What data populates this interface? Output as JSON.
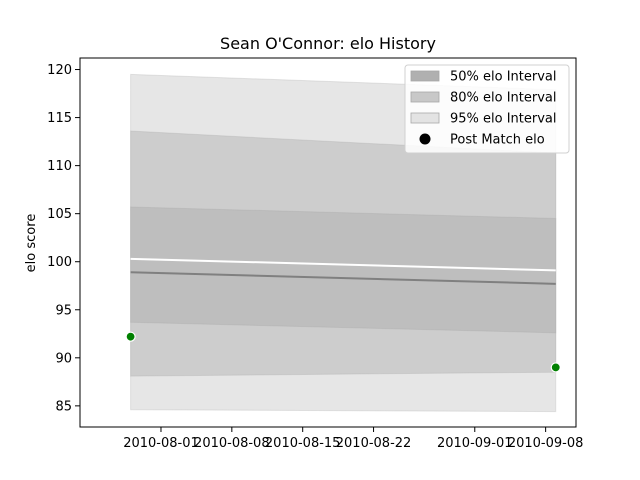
{
  "chart_data": {
    "type": "line",
    "title": "Sean O'Connor: elo History",
    "xlabel": "",
    "ylabel": "elo score",
    "x_ticks": [
      "2010-08-01",
      "2010-08-08",
      "2010-08-15",
      "2010-08-22",
      "2010-09-01",
      "2010-09-08"
    ],
    "y_ticks": [
      85,
      90,
      95,
      100,
      105,
      110,
      115,
      120
    ],
    "xlim": [
      "2010-07-24",
      "2010-09-11"
    ],
    "ylim": [
      82.8,
      121.2
    ],
    "grid": false,
    "legend_position": "top-right",
    "dates": [
      "2010-07-29",
      "2010-09-09"
    ],
    "mean": [
      98.9,
      97.7
    ],
    "median": [
      100.3,
      99.1
    ],
    "bands": [
      {
        "name": "95% elo Interval",
        "lower": [
          84.6,
          84.4
        ],
        "upper": [
          119.5,
          117.9
        ],
        "color": "#e3e3e3"
      },
      {
        "name": "80% elo Interval",
        "lower": [
          88.1,
          88.5
        ],
        "upper": [
          113.6,
          111.3
        ],
        "color": "#cacaca"
      },
      {
        "name": "50% elo Interval",
        "lower": [
          93.7,
          92.6
        ],
        "upper": [
          105.7,
          104.5
        ],
        "color": "#bdbdbd"
      }
    ],
    "points": {
      "name": "Post Match elo",
      "dates": [
        "2010-07-29",
        "2010-09-09"
      ],
      "values": [
        92.2,
        89.0
      ],
      "color": "#008000"
    },
    "legend": [
      {
        "label": "50% elo Interval",
        "color": "#b0b0b0",
        "kind": "patch"
      },
      {
        "label": "80% elo Interval",
        "color": "#c8c8c8",
        "kind": "patch"
      },
      {
        "label": "95% elo Interval",
        "color": "#e3e3e3",
        "kind": "patch"
      },
      {
        "label": "Post Match elo",
        "color": "#000000",
        "kind": "marker"
      }
    ]
  }
}
